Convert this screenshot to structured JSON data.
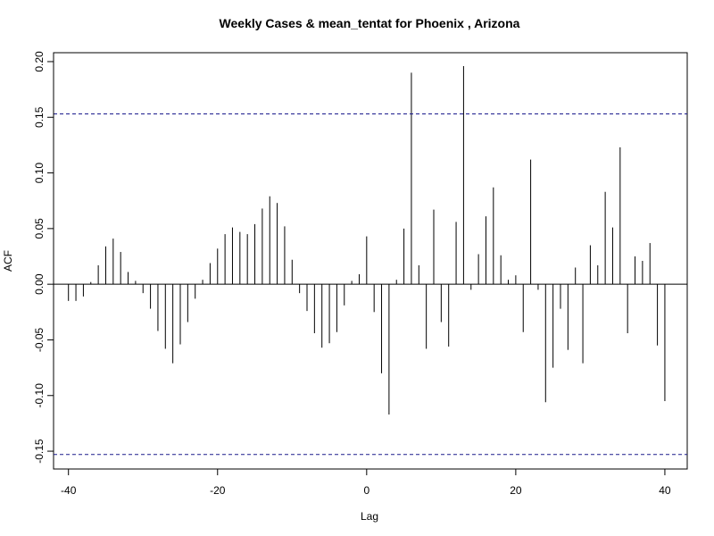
{
  "chart_data": {
    "type": "bar",
    "title": "Weekly Cases & mean_tentat for Phoenix , Arizona",
    "xlabel": "Lag",
    "ylabel": "ACF",
    "xlim": [
      -42,
      43
    ],
    "ylim": [
      -0.166,
      0.208
    ],
    "x_ticks": [
      -40,
      -20,
      0,
      20,
      40
    ],
    "x_tick_labels": [
      "-40",
      "-20",
      "0",
      "20",
      "40"
    ],
    "y_ticks": [
      -0.15,
      -0.1,
      -0.05,
      0.0,
      0.05,
      0.1,
      0.15,
      0.2
    ],
    "y_tick_labels": [
      "-0.15",
      "-0.10",
      "-0.05",
      "0.00",
      "0.05",
      "0.10",
      "0.15",
      "0.20"
    ],
    "confidence_bound": 0.153,
    "lags": [
      -40,
      -39,
      -38,
      -37,
      -36,
      -35,
      -34,
      -33,
      -32,
      -31,
      -30,
      -29,
      -28,
      -27,
      -26,
      -25,
      -24,
      -23,
      -22,
      -21,
      -20,
      -19,
      -18,
      -17,
      -16,
      -15,
      -14,
      -13,
      -12,
      -11,
      -10,
      -9,
      -8,
      -7,
      -6,
      -5,
      -4,
      -3,
      -2,
      -1,
      0,
      1,
      2,
      3,
      4,
      5,
      6,
      7,
      8,
      9,
      10,
      11,
      12,
      13,
      14,
      15,
      16,
      17,
      18,
      19,
      20,
      21,
      22,
      23,
      24,
      25,
      26,
      27,
      28,
      29,
      30,
      31,
      32,
      33,
      34,
      35,
      36,
      37,
      38,
      39,
      40
    ],
    "values": [
      -0.015,
      -0.015,
      -0.011,
      0.002,
      0.017,
      0.034,
      0.041,
      0.029,
      0.011,
      0.003,
      -0.008,
      -0.022,
      -0.042,
      -0.058,
      -0.071,
      -0.054,
      -0.034,
      -0.013,
      0.004,
      0.019,
      0.032,
      0.045,
      0.051,
      0.047,
      0.045,
      0.054,
      0.068,
      0.079,
      0.073,
      0.052,
      0.022,
      -0.008,
      -0.024,
      -0.044,
      -0.057,
      -0.053,
      -0.043,
      -0.019,
      0.003,
      0.009,
      0.043,
      -0.025,
      -0.08,
      -0.117,
      0.004,
      0.05,
      0.19,
      0.017,
      -0.058,
      0.067,
      -0.034,
      -0.056,
      0.056,
      0.196,
      -0.005,
      0.027,
      0.061,
      0.087,
      0.026,
      0.004,
      0.008,
      -0.043,
      0.112,
      -0.005,
      -0.106,
      -0.075,
      -0.022,
      -0.059,
      0.015,
      -0.071,
      0.035,
      0.017,
      0.083,
      0.051,
      0.123,
      -0.044,
      0.025,
      0.021,
      0.037,
      -0.055,
      -0.105
    ]
  }
}
